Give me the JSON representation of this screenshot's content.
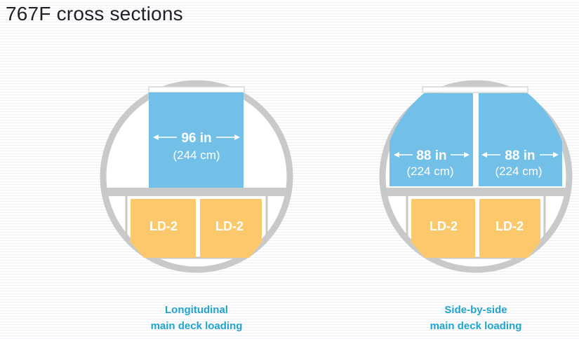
{
  "title": "767F cross sections",
  "colors": {
    "fuselage": "#c8c9cb",
    "main_deck_cargo": "#72c0e8",
    "lower_deck_cargo": "#fbc96b",
    "caption": "#1fa3cf"
  },
  "sections": [
    {
      "caption_line1": "Longitudinal",
      "caption_line2": "main deck loading",
      "main_deck": [
        {
          "dim_in": "96 in",
          "dim_cm": "(244 cm)"
        }
      ],
      "lower_deck": [
        {
          "label": "LD-2"
        },
        {
          "label": "LD-2"
        }
      ]
    },
    {
      "caption_line1": "Side-by-side",
      "caption_line2": "main deck loading",
      "main_deck": [
        {
          "dim_in": "88 in",
          "dim_cm": "(224 cm)"
        },
        {
          "dim_in": "88 in",
          "dim_cm": "(224 cm)"
        }
      ],
      "lower_deck": [
        {
          "label": "LD-2"
        },
        {
          "label": "LD-2"
        }
      ]
    }
  ]
}
